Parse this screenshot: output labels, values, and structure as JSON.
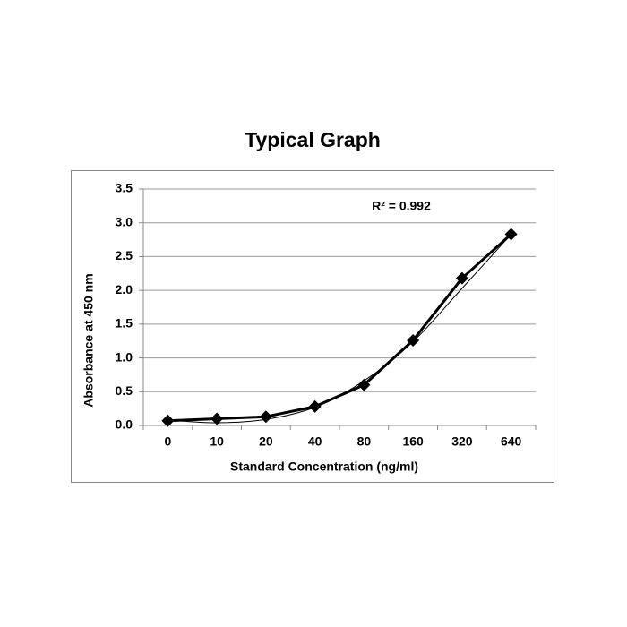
{
  "chart_data": {
    "type": "line",
    "title": "Typical Graph",
    "x_label": "Standard Concentration (ng/ml)",
    "y_label": "Absorbance at 450 nm",
    "annotation": "R² = 0.992",
    "categories": [
      "0",
      "10",
      "20",
      "40",
      "80",
      "160",
      "320",
      "640"
    ],
    "series": [
      {
        "color": "#000000",
        "marker": "diamond",
        "width": 3,
        "values": [
          0.07,
          0.1,
          0.13,
          0.28,
          0.6,
          1.26,
          2.18,
          2.83
        ]
      },
      {
        "color": "#000000",
        "marker": "none",
        "width": 1,
        "smooth": true,
        "values": [
          0.08,
          0.04,
          0.09,
          0.27,
          0.66,
          1.24,
          2.03,
          2.83
        ]
      }
    ],
    "ylim": [
      0,
      3.5
    ],
    "yticks": [
      {
        "value": 0,
        "label": "0.0"
      },
      0.5,
      {
        "value": 1,
        "label": "1.0"
      },
      1.5,
      {
        "value": 2,
        "label": "2.0"
      },
      2.5,
      {
        "value": 3,
        "label": "3.0"
      },
      3.5
    ],
    "grid": true
  }
}
